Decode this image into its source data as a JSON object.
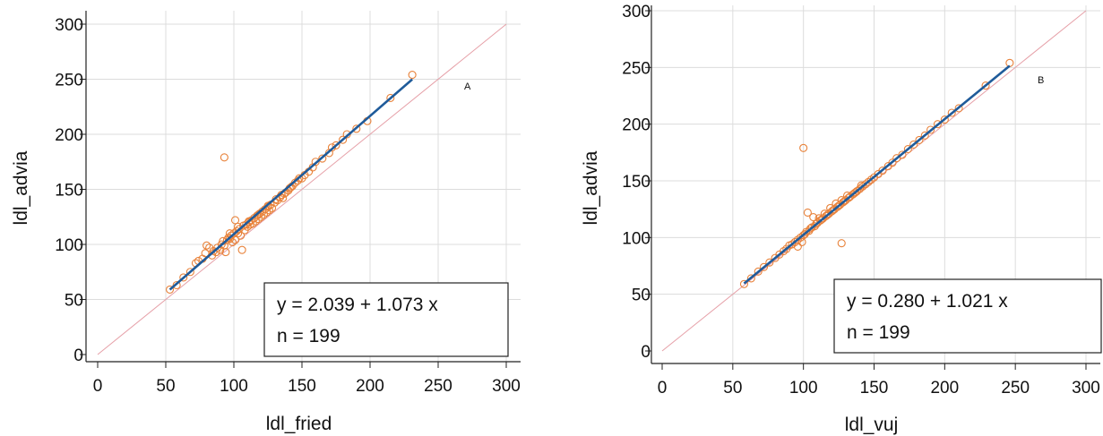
{
  "chart_data": [
    {
      "type": "scatter",
      "panel_label": "A",
      "xlabel": "ldl_fried",
      "ylabel": "ldl_advia",
      "xlim": [
        0,
        300
      ],
      "ylim": [
        0,
        300
      ],
      "x_ticks": [
        "0",
        "50",
        "100",
        "150",
        "200",
        "250",
        "300"
      ],
      "y_ticks": [
        "0",
        "50",
        "100",
        "150",
        "200",
        "250",
        "300"
      ],
      "grid": true,
      "identity_line": true,
      "regression": {
        "intercept": 2.039,
        "slope": 1.073,
        "x_range": [
          53,
          231
        ]
      },
      "annotation": {
        "equation": "y = 2.039 + 1.073 x",
        "n_label": "n = 199"
      },
      "colors": {
        "points": "#e8823a",
        "regression": "#1f5b9a",
        "identity": "#e6a0a8",
        "grid": "#dcdcdc"
      },
      "points": [
        [
          53,
          59
        ],
        [
          58,
          63
        ],
        [
          63,
          70
        ],
        [
          68,
          75
        ],
        [
          72,
          83
        ],
        [
          74,
          85
        ],
        [
          77,
          87
        ],
        [
          79,
          92
        ],
        [
          80,
          99
        ],
        [
          82,
          97
        ],
        [
          84,
          90
        ],
        [
          85,
          94
        ],
        [
          87,
          93
        ],
        [
          88,
          97
        ],
        [
          90,
          95
        ],
        [
          91,
          100
        ],
        [
          92,
          103
        ],
        [
          93,
          99
        ],
        [
          94,
          93
        ],
        [
          95,
          104
        ],
        [
          96,
          106
        ],
        [
          97,
          105
        ],
        [
          98,
          108
        ],
        [
          99,
          102
        ],
        [
          100,
          110
        ],
        [
          101,
          104
        ],
        [
          102,
          112
        ],
        [
          103,
          110
        ],
        [
          104,
          114
        ],
        [
          105,
          108
        ],
        [
          106,
          95
        ],
        [
          107,
          117
        ],
        [
          108,
          113
        ],
        [
          109,
          118
        ],
        [
          110,
          116
        ],
        [
          111,
          120
        ],
        [
          112,
          118
        ],
        [
          113,
          122
        ],
        [
          114,
          119
        ],
        [
          115,
          124
        ],
        [
          116,
          121
        ],
        [
          117,
          126
        ],
        [
          118,
          123
        ],
        [
          119,
          128
        ],
        [
          120,
          125
        ],
        [
          121,
          130
        ],
        [
          122,
          127
        ],
        [
          123,
          132
        ],
        [
          124,
          129
        ],
        [
          125,
          134
        ],
        [
          126,
          131
        ],
        [
          127,
          136
        ],
        [
          128,
          133
        ],
        [
          130,
          138
        ],
        [
          132,
          140
        ],
        [
          134,
          143
        ],
        [
          135,
          145
        ],
        [
          136,
          142
        ],
        [
          138,
          147
        ],
        [
          140,
          149
        ],
        [
          141,
          151
        ],
        [
          143,
          153
        ],
        [
          145,
          156
        ],
        [
          147,
          158
        ],
        [
          150,
          160
        ],
        [
          152,
          163
        ],
        [
          155,
          166
        ],
        [
          158,
          170
        ],
        [
          160,
          175
        ],
        [
          165,
          178
        ],
        [
          170,
          183
        ],
        [
          172,
          188
        ],
        [
          175,
          190
        ],
        [
          180,
          195
        ],
        [
          183,
          200
        ],
        [
          190,
          205
        ],
        [
          198,
          212
        ],
        [
          215,
          233
        ],
        [
          231,
          254
        ],
        [
          93,
          179
        ],
        [
          101,
          122
        ],
        [
          97,
          110
        ],
        [
          103,
          116
        ],
        [
          111,
          121
        ],
        [
          118,
          127
        ],
        [
          125,
          135
        ],
        [
          131,
          141
        ],
        [
          137,
          146
        ],
        [
          142,
          152
        ],
        [
          148,
          160
        ]
      ]
    },
    {
      "type": "scatter",
      "panel_label": "B",
      "xlabel": "ldl_vuj",
      "ylabel": "ldl_advia",
      "xlim": [
        0,
        300
      ],
      "ylim": [
        0,
        300
      ],
      "x_ticks": [
        "0",
        "50",
        "100",
        "150",
        "200",
        "250",
        "300"
      ],
      "y_ticks": [
        "0",
        "50",
        "100",
        "150",
        "200",
        "250",
        "300"
      ],
      "grid": true,
      "identity_line": true,
      "regression": {
        "intercept": 0.28,
        "slope": 1.021,
        "x_range": [
          58,
          246
        ]
      },
      "annotation": {
        "equation": "y = 0.280 + 1.021 x",
        "n_label": "n = 199"
      },
      "colors": {
        "points": "#e8823a",
        "regression": "#1f5b9a",
        "identity": "#e6a0a8",
        "grid": "#dcdcdc"
      },
      "points": [
        [
          58,
          59
        ],
        [
          63,
          64
        ],
        [
          68,
          70
        ],
        [
          72,
          74
        ],
        [
          76,
          78
        ],
        [
          80,
          82
        ],
        [
          83,
          85
        ],
        [
          86,
          88
        ],
        [
          88,
          90
        ],
        [
          90,
          93
        ],
        [
          92,
          94
        ],
        [
          94,
          96
        ],
        [
          96,
          98
        ],
        [
          98,
          100
        ],
        [
          100,
          102
        ],
        [
          101,
          103
        ],
        [
          102,
          105
        ],
        [
          104,
          106
        ],
        [
          105,
          108
        ],
        [
          106,
          109
        ],
        [
          108,
          110
        ],
        [
          109,
          112
        ],
        [
          110,
          113
        ],
        [
          112,
          115
        ],
        [
          113,
          116
        ],
        [
          114,
          117
        ],
        [
          116,
          119
        ],
        [
          117,
          120
        ],
        [
          118,
          121
        ],
        [
          120,
          123
        ],
        [
          121,
          124
        ],
        [
          122,
          125
        ],
        [
          124,
          127
        ],
        [
          125,
          128
        ],
        [
          126,
          129
        ],
        [
          128,
          131
        ],
        [
          129,
          132
        ],
        [
          130,
          133
        ],
        [
          132,
          135
        ],
        [
          133,
          136
        ],
        [
          135,
          138
        ],
        [
          136,
          139
        ],
        [
          138,
          141
        ],
        [
          140,
          143
        ],
        [
          142,
          145
        ],
        [
          144,
          147
        ],
        [
          146,
          149
        ],
        [
          148,
          151
        ],
        [
          150,
          153
        ],
        [
          153,
          156
        ],
        [
          156,
          159
        ],
        [
          160,
          163
        ],
        [
          163,
          166
        ],
        [
          166,
          170
        ],
        [
          170,
          173
        ],
        [
          174,
          178
        ],
        [
          178,
          182
        ],
        [
          182,
          186
        ],
        [
          186,
          190
        ],
        [
          190,
          195
        ],
        [
          195,
          200
        ],
        [
          200,
          204
        ],
        [
          205,
          210
        ],
        [
          210,
          214
        ],
        [
          229,
          234
        ],
        [
          246,
          254
        ],
        [
          100,
          179
        ],
        [
          127,
          95
        ],
        [
          103,
          122
        ],
        [
          107,
          118
        ],
        [
          111,
          117
        ],
        [
          115,
          121
        ],
        [
          119,
          126
        ],
        [
          123,
          130
        ],
        [
          127,
          133
        ],
        [
          131,
          137
        ],
        [
          137,
          140
        ],
        [
          141,
          146
        ],
        [
          96,
          92
        ],
        [
          99,
          96
        ]
      ]
    }
  ]
}
